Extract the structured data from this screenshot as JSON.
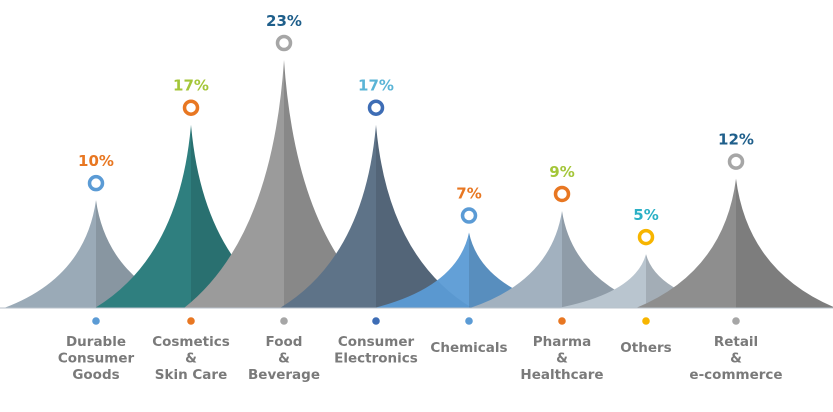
{
  "chart_data": {
    "type": "area",
    "title": "",
    "categories": [
      {
        "label": [
          "Durable",
          "Consumer",
          "Goods"
        ],
        "value": 10,
        "value_label": "10%",
        "peak_color": "#9aaab7",
        "marker_color": "#5b9bd5",
        "label_color": "#e87722",
        "dot_color": "#5b9bd5"
      },
      {
        "label": [
          "Cosmetics",
          "&",
          "Skin Care"
        ],
        "value": 17,
        "value_label": "17%",
        "peak_color": "#2f7f7f",
        "marker_color": "#e87722",
        "label_color": "#a4c639",
        "dot_color": "#e87722"
      },
      {
        "label": [
          "Food",
          "&",
          "Beverage"
        ],
        "value": 23,
        "value_label": "23%",
        "peak_color": "#9b9b9b",
        "marker_color": "#a6a6a6",
        "label_color": "#1f5f8b",
        "dot_color": "#a6a6a6"
      },
      {
        "label": [
          "Consumer",
          "Electronics"
        ],
        "value": 17,
        "value_label": "17%",
        "peak_color": "#5e7388",
        "marker_color": "#3e6db5",
        "label_color": "#5ab4d6",
        "dot_color": "#3e6db5"
      },
      {
        "label": [
          "Chemicals"
        ],
        "value": 7,
        "value_label": "7%",
        "peak_color": "#5b9bd5",
        "marker_color": "#5b9bd5",
        "label_color": "#e87722",
        "dot_color": "#5b9bd5"
      },
      {
        "label": [
          "Pharma",
          "&",
          "Healthcare"
        ],
        "value": 9,
        "value_label": "9%",
        "peak_color": "#a2b1bf",
        "marker_color": "#e87722",
        "label_color": "#a4c639",
        "dot_color": "#e87722"
      },
      {
        "label": [
          "Others"
        ],
        "value": 5,
        "value_label": "5%",
        "peak_color": "#b9c5cf",
        "marker_color": "#f7b500",
        "label_color": "#2ab0c5",
        "dot_color": "#f7b500"
      },
      {
        "label": [
          "Retail",
          "&",
          "e-commerce"
        ],
        "value": 12,
        "value_label": "12%",
        "peak_color": "#8e8e8e",
        "marker_color": "#a6a6a6",
        "label_color": "#1f5f8b",
        "dot_color": "#a6a6a6"
      }
    ],
    "ylim": [
      0,
      23
    ],
    "grid": false,
    "legend": "none"
  }
}
